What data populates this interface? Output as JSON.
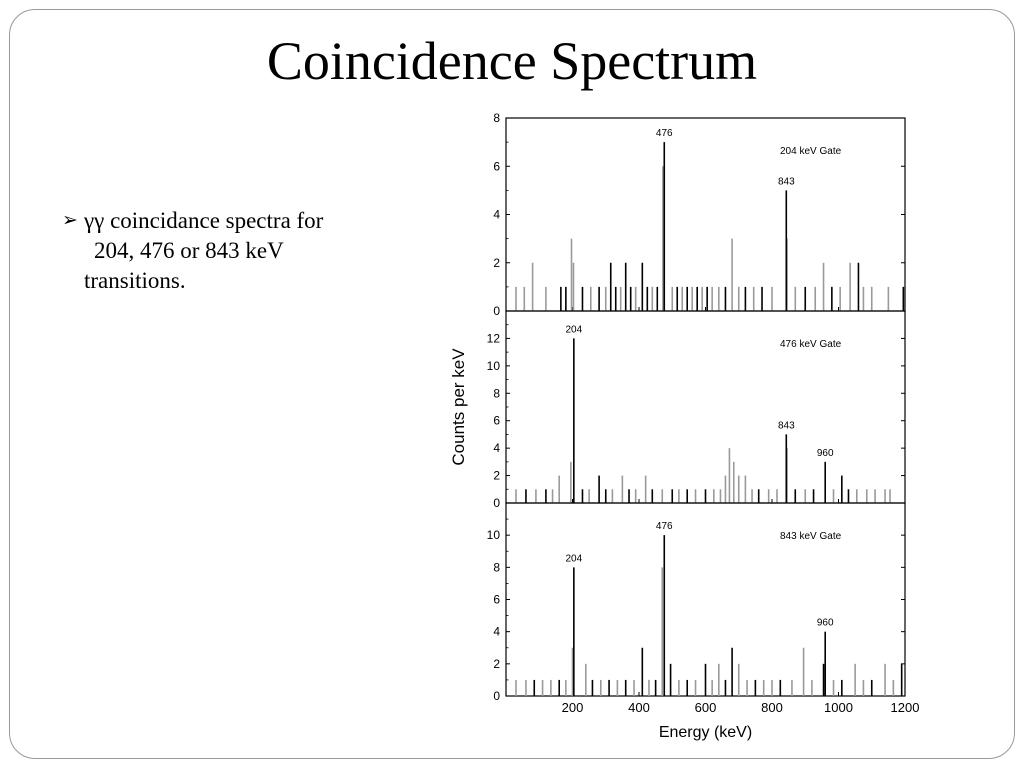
{
  "slide": {
    "title": "Coincidence Spectrum",
    "bullet_marker": "➢",
    "bullet_lines": [
      "γγ coincidance spectra for",
      "204, 476 or 843 keV",
      "transitions."
    ]
  },
  "chart_data": {
    "type": "bar",
    "xlabel": "Energy (keV)",
    "ylabel": "Counts per keV",
    "xlim": [
      0,
      1200
    ],
    "x_ticks": [
      200,
      400,
      600,
      800,
      1000,
      1200
    ],
    "colors": {
      "gray": "#9a9a9a",
      "black": "#000000"
    },
    "panels": [
      {
        "name": "204 keV Gate",
        "ylim": [
          0,
          8
        ],
        "y_ticks": [
          0,
          2,
          4,
          6,
          8
        ],
        "peaks": [
          {
            "x": 476,
            "y": 7,
            "label": "476"
          },
          {
            "x": 843,
            "y": 5,
            "label": "843"
          }
        ],
        "counts": [
          {
            "x": 197,
            "y": 3,
            "c": "gray"
          },
          {
            "x": 203,
            "y": 2,
            "c": "gray"
          },
          {
            "x": 80,
            "y": 2,
            "c": "gray"
          },
          {
            "x": 315,
            "y": 2,
            "c": "black"
          },
          {
            "x": 360,
            "y": 2,
            "c": "black"
          },
          {
            "x": 410,
            "y": 2,
            "c": "black"
          },
          {
            "x": 472,
            "y": 6,
            "c": "gray"
          },
          {
            "x": 680,
            "y": 3,
            "c": "gray"
          },
          {
            "x": 845,
            "y": 3,
            "c": "gray"
          },
          {
            "x": 955,
            "y": 2,
            "c": "gray"
          },
          {
            "x": 1035,
            "y": 2,
            "c": "gray"
          },
          {
            "x": 1060,
            "y": 2,
            "c": "black"
          },
          {
            "x": 30,
            "y": 1,
            "c": "gray"
          },
          {
            "x": 55,
            "y": 1,
            "c": "gray"
          },
          {
            "x": 120,
            "y": 1,
            "c": "gray"
          },
          {
            "x": 165,
            "y": 1,
            "c": "black"
          },
          {
            "x": 180,
            "y": 1,
            "c": "black"
          },
          {
            "x": 230,
            "y": 1,
            "c": "black"
          },
          {
            "x": 255,
            "y": 1,
            "c": "gray"
          },
          {
            "x": 280,
            "y": 1,
            "c": "black"
          },
          {
            "x": 300,
            "y": 1,
            "c": "gray"
          },
          {
            "x": 330,
            "y": 1,
            "c": "black"
          },
          {
            "x": 345,
            "y": 1,
            "c": "gray"
          },
          {
            "x": 375,
            "y": 1,
            "c": "black"
          },
          {
            "x": 390,
            "y": 1,
            "c": "gray"
          },
          {
            "x": 425,
            "y": 1,
            "c": "black"
          },
          {
            "x": 440,
            "y": 1,
            "c": "gray"
          },
          {
            "x": 455,
            "y": 1,
            "c": "black"
          },
          {
            "x": 500,
            "y": 1,
            "c": "gray"
          },
          {
            "x": 515,
            "y": 1,
            "c": "black"
          },
          {
            "x": 530,
            "y": 1,
            "c": "gray"
          },
          {
            "x": 545,
            "y": 1,
            "c": "black"
          },
          {
            "x": 560,
            "y": 1,
            "c": "gray"
          },
          {
            "x": 575,
            "y": 1,
            "c": "black"
          },
          {
            "x": 590,
            "y": 1,
            "c": "gray"
          },
          {
            "x": 605,
            "y": 1,
            "c": "black"
          },
          {
            "x": 620,
            "y": 1,
            "c": "gray"
          },
          {
            "x": 640,
            "y": 1,
            "c": "gray"
          },
          {
            "x": 660,
            "y": 1,
            "c": "black"
          },
          {
            "x": 700,
            "y": 1,
            "c": "gray"
          },
          {
            "x": 720,
            "y": 1,
            "c": "black"
          },
          {
            "x": 745,
            "y": 1,
            "c": "gray"
          },
          {
            "x": 770,
            "y": 1,
            "c": "black"
          },
          {
            "x": 800,
            "y": 1,
            "c": "gray"
          },
          {
            "x": 870,
            "y": 1,
            "c": "gray"
          },
          {
            "x": 900,
            "y": 1,
            "c": "black"
          },
          {
            "x": 930,
            "y": 1,
            "c": "gray"
          },
          {
            "x": 980,
            "y": 1,
            "c": "black"
          },
          {
            "x": 1005,
            "y": 1,
            "c": "gray"
          },
          {
            "x": 1075,
            "y": 1,
            "c": "gray"
          },
          {
            "x": 1100,
            "y": 1,
            "c": "gray"
          },
          {
            "x": 1150,
            "y": 1,
            "c": "gray"
          },
          {
            "x": 1195,
            "y": 1,
            "c": "black"
          }
        ]
      },
      {
        "name": "476 keV Gate",
        "ylim": [
          0,
          14
        ],
        "y_ticks": [
          0,
          2,
          4,
          6,
          8,
          10,
          12
        ],
        "peaks": [
          {
            "x": 204,
            "y": 12,
            "label": "204"
          },
          {
            "x": 843,
            "y": 5,
            "label": "843"
          },
          {
            "x": 960,
            "y": 3,
            "label": "960"
          }
        ],
        "counts": [
          {
            "x": 195,
            "y": 3,
            "c": "gray"
          },
          {
            "x": 160,
            "y": 2,
            "c": "gray"
          },
          {
            "x": 280,
            "y": 2,
            "c": "black"
          },
          {
            "x": 350,
            "y": 2,
            "c": "gray"
          },
          {
            "x": 420,
            "y": 2,
            "c": "gray"
          },
          {
            "x": 660,
            "y": 2,
            "c": "gray"
          },
          {
            "x": 672,
            "y": 4,
            "c": "gray"
          },
          {
            "x": 685,
            "y": 3,
            "c": "gray"
          },
          {
            "x": 700,
            "y": 2,
            "c": "gray"
          },
          {
            "x": 720,
            "y": 2,
            "c": "gray"
          },
          {
            "x": 845,
            "y": 4,
            "c": "gray"
          },
          {
            "x": 1010,
            "y": 2,
            "c": "black"
          },
          {
            "x": 30,
            "y": 1,
            "c": "gray"
          },
          {
            "x": 60,
            "y": 1,
            "c": "black"
          },
          {
            "x": 90,
            "y": 1,
            "c": "gray"
          },
          {
            "x": 120,
            "y": 1,
            "c": "black"
          },
          {
            "x": 140,
            "y": 1,
            "c": "gray"
          },
          {
            "x": 230,
            "y": 1,
            "c": "black"
          },
          {
            "x": 250,
            "y": 1,
            "c": "gray"
          },
          {
            "x": 300,
            "y": 1,
            "c": "black"
          },
          {
            "x": 320,
            "y": 1,
            "c": "gray"
          },
          {
            "x": 370,
            "y": 1,
            "c": "black"
          },
          {
            "x": 390,
            "y": 1,
            "c": "gray"
          },
          {
            "x": 440,
            "y": 1,
            "c": "black"
          },
          {
            "x": 470,
            "y": 1,
            "c": "gray"
          },
          {
            "x": 500,
            "y": 1,
            "c": "black"
          },
          {
            "x": 520,
            "y": 1,
            "c": "gray"
          },
          {
            "x": 545,
            "y": 1,
            "c": "black"
          },
          {
            "x": 570,
            "y": 1,
            "c": "gray"
          },
          {
            "x": 600,
            "y": 1,
            "c": "black"
          },
          {
            "x": 625,
            "y": 1,
            "c": "gray"
          },
          {
            "x": 645,
            "y": 1,
            "c": "gray"
          },
          {
            "x": 740,
            "y": 1,
            "c": "gray"
          },
          {
            "x": 760,
            "y": 1,
            "c": "black"
          },
          {
            "x": 790,
            "y": 1,
            "c": "gray"
          },
          {
            "x": 815,
            "y": 1,
            "c": "gray"
          },
          {
            "x": 870,
            "y": 1,
            "c": "black"
          },
          {
            "x": 900,
            "y": 1,
            "c": "gray"
          },
          {
            "x": 925,
            "y": 1,
            "c": "black"
          },
          {
            "x": 985,
            "y": 1,
            "c": "gray"
          },
          {
            "x": 1030,
            "y": 1,
            "c": "black"
          },
          {
            "x": 1055,
            "y": 1,
            "c": "gray"
          },
          {
            "x": 1085,
            "y": 1,
            "c": "gray"
          },
          {
            "x": 1110,
            "y": 1,
            "c": "gray"
          },
          {
            "x": 1140,
            "y": 1,
            "c": "gray"
          },
          {
            "x": 1155,
            "y": 1,
            "c": "gray"
          }
        ]
      },
      {
        "name": "843 keV Gate",
        "ylim": [
          0,
          12
        ],
        "y_ticks": [
          0,
          2,
          4,
          6,
          8,
          10
        ],
        "peaks": [
          {
            "x": 204,
            "y": 8,
            "label": "204"
          },
          {
            "x": 476,
            "y": 10,
            "label": "476"
          },
          {
            "x": 960,
            "y": 4,
            "label": "960"
          }
        ],
        "counts": [
          {
            "x": 200,
            "y": 3,
            "c": "gray"
          },
          {
            "x": 240,
            "y": 2,
            "c": "gray"
          },
          {
            "x": 410,
            "y": 3,
            "c": "black"
          },
          {
            "x": 470,
            "y": 8,
            "c": "gray"
          },
          {
            "x": 495,
            "y": 2,
            "c": "black"
          },
          {
            "x": 600,
            "y": 2,
            "c": "black"
          },
          {
            "x": 640,
            "y": 2,
            "c": "gray"
          },
          {
            "x": 680,
            "y": 3,
            "c": "black"
          },
          {
            "x": 700,
            "y": 2,
            "c": "gray"
          },
          {
            "x": 895,
            "y": 3,
            "c": "gray"
          },
          {
            "x": 955,
            "y": 2,
            "c": "black"
          },
          {
            "x": 1050,
            "y": 2,
            "c": "gray"
          },
          {
            "x": 1140,
            "y": 2,
            "c": "gray"
          },
          {
            "x": 1190,
            "y": 2,
            "c": "black"
          },
          {
            "x": 30,
            "y": 1,
            "c": "gray"
          },
          {
            "x": 60,
            "y": 1,
            "c": "gray"
          },
          {
            "x": 85,
            "y": 1,
            "c": "black"
          },
          {
            "x": 110,
            "y": 1,
            "c": "gray"
          },
          {
            "x": 135,
            "y": 1,
            "c": "gray"
          },
          {
            "x": 160,
            "y": 1,
            "c": "black"
          },
          {
            "x": 180,
            "y": 1,
            "c": "gray"
          },
          {
            "x": 260,
            "y": 1,
            "c": "black"
          },
          {
            "x": 285,
            "y": 1,
            "c": "gray"
          },
          {
            "x": 310,
            "y": 1,
            "c": "black"
          },
          {
            "x": 335,
            "y": 1,
            "c": "gray"
          },
          {
            "x": 360,
            "y": 1,
            "c": "black"
          },
          {
            "x": 385,
            "y": 1,
            "c": "gray"
          },
          {
            "x": 430,
            "y": 1,
            "c": "gray"
          },
          {
            "x": 450,
            "y": 1,
            "c": "black"
          },
          {
            "x": 520,
            "y": 1,
            "c": "gray"
          },
          {
            "x": 545,
            "y": 1,
            "c": "black"
          },
          {
            "x": 570,
            "y": 1,
            "c": "gray"
          },
          {
            "x": 620,
            "y": 1,
            "c": "gray"
          },
          {
            "x": 660,
            "y": 1,
            "c": "black"
          },
          {
            "x": 725,
            "y": 1,
            "c": "gray"
          },
          {
            "x": 750,
            "y": 1,
            "c": "black"
          },
          {
            "x": 775,
            "y": 1,
            "c": "gray"
          },
          {
            "x": 800,
            "y": 1,
            "c": "gray"
          },
          {
            "x": 825,
            "y": 1,
            "c": "black"
          },
          {
            "x": 860,
            "y": 1,
            "c": "gray"
          },
          {
            "x": 920,
            "y": 1,
            "c": "gray"
          },
          {
            "x": 985,
            "y": 1,
            "c": "gray"
          },
          {
            "x": 1010,
            "y": 1,
            "c": "black"
          },
          {
            "x": 1075,
            "y": 1,
            "c": "gray"
          },
          {
            "x": 1100,
            "y": 1,
            "c": "black"
          },
          {
            "x": 1165,
            "y": 1,
            "c": "gray"
          }
        ]
      }
    ]
  }
}
